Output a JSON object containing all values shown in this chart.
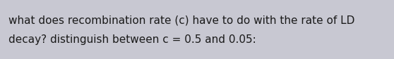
{
  "text_line1": "what does recombination rate (c) have to do with the rate of LD",
  "text_line2": "decay? distinguish between c = 0.5 and 0.05:",
  "background_color": "#c8c8d2",
  "text_color": "#1a1a1a",
  "font_size": 11.0,
  "fig_width": 5.58,
  "fig_height": 0.84,
  "dpi": 100
}
